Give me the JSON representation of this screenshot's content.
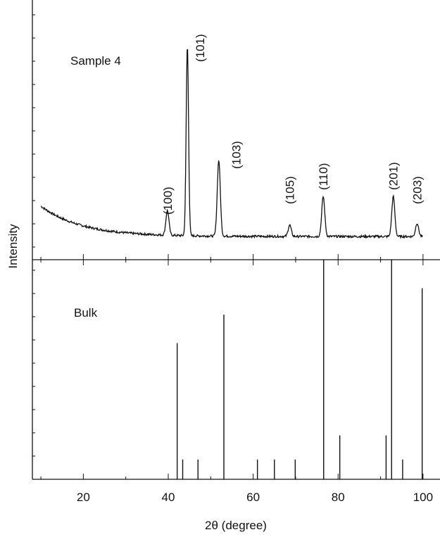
{
  "chart_data": [
    {
      "type": "line",
      "panel": "top",
      "label": "Sample 4",
      "x_range": [
        8,
        104
      ],
      "peaks": [
        {
          "x": 39.8,
          "y": 0.13,
          "label": "(100)"
        },
        {
          "x": 44.5,
          "y": 1.0,
          "label": "(101)"
        },
        {
          "x": 51.9,
          "y": 0.4,
          "label": "(103)"
        },
        {
          "x": 68.6,
          "y": 0.06,
          "label": "(105)"
        },
        {
          "x": 76.5,
          "y": 0.21,
          "label": "(110)"
        },
        {
          "x": 93.0,
          "y": 0.21,
          "label": "(201)"
        },
        {
          "x": 98.6,
          "y": 0.07,
          "label": "(203)"
        }
      ],
      "background": {
        "x_start": 10,
        "y_start": 0.16,
        "y_end": 0.0
      }
    },
    {
      "type": "bar",
      "panel": "bottom",
      "label": "Bulk",
      "x_range": [
        8,
        104
      ],
      "sticks": [
        {
          "x": 42.1,
          "y": 0.62
        },
        {
          "x": 43.4,
          "y": 0.09
        },
        {
          "x": 47.0,
          "y": 0.09
        },
        {
          "x": 53.1,
          "y": 0.75
        },
        {
          "x": 61.0,
          "y": 0.09
        },
        {
          "x": 65.0,
          "y": 0.09
        },
        {
          "x": 69.9,
          "y": 0.09
        },
        {
          "x": 76.6,
          "y": 1.0
        },
        {
          "x": 80.4,
          "y": 0.2
        },
        {
          "x": 91.3,
          "y": 0.2
        },
        {
          "x": 92.6,
          "y": 1.0
        },
        {
          "x": 95.2,
          "y": 0.09
        },
        {
          "x": 99.8,
          "y": 0.87
        }
      ]
    }
  ],
  "axes": {
    "xlabel": "2θ (degree)",
    "ylabel": "Intensity",
    "x_ticks": [
      "20",
      "40",
      "60",
      "80",
      "100"
    ]
  }
}
